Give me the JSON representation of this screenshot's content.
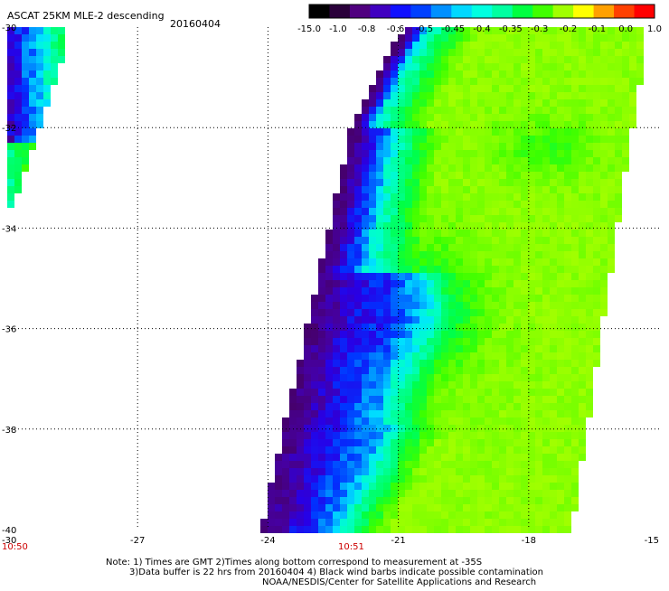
{
  "title": "ASCAT 25KM MLE-2 descending",
  "date": "20160404",
  "colorbar": {
    "colors": [
      "#000000",
      "#2a003a",
      "#50007f",
      "#4000c0",
      "#1010ff",
      "#0040ff",
      "#0090ff",
      "#00d8ff",
      "#00ffe0",
      "#00ffa0",
      "#00ff40",
      "#40ff00",
      "#a0ff00",
      "#ffff00",
      "#ffa000",
      "#ff4000",
      "#ff0000"
    ],
    "labels": [
      "-15.0",
      "-1.0",
      "-0.8",
      "-0.6",
      "-0.5",
      "-0.45",
      "-0.4",
      "-0.35",
      "-0.3",
      "-0.2",
      "-0.1",
      "0.0",
      "1.0"
    ]
  },
  "map": {
    "lon_range": [
      -30,
      -15
    ],
    "lat_range": [
      -40,
      -30
    ],
    "x_ticks": [
      "-30",
      "-27",
      "-24",
      "-21",
      "-18",
      "-15"
    ],
    "y_ticks": [
      "-30",
      "-32",
      "-34",
      "-36",
      "-38",
      "-40"
    ],
    "time_labels": [
      {
        "text": "10:50",
        "lon": -30
      },
      {
        "text": "10:51",
        "lon": -22.5
      }
    ]
  },
  "notes": [
    "Note: 1) Times are GMT 2)Times along bottom correspond to measurement at -35S",
    "3)Data buffer is 22 hrs from 20160404 4) Black wind barbs indicate possible contamination",
    "NOAA/NESDIS/Center for Satellite Applications and Research"
  ]
}
